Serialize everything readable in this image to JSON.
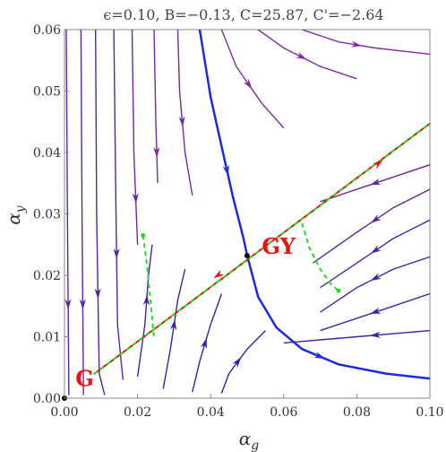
{
  "chart_data": {
    "type": "stream",
    "title": "ϵ=0.10, B=−0.13, C=25.87, C'=−2.64",
    "xlabel": "αg",
    "xlabel_base": "α",
    "xlabel_sub": "g",
    "ylabel_base": "α",
    "ylabel_sub": "y",
    "xlim": [
      0.0,
      0.1
    ],
    "ylim": [
      0.0,
      0.06
    ],
    "x_ticks": [
      0.0,
      0.02,
      0.04,
      0.06,
      0.08,
      0.1
    ],
    "x_tick_labels": [
      "0.00",
      "0.02",
      "0.04",
      "0.06",
      "0.08",
      "0.10"
    ],
    "y_ticks": [
      0.0,
      0.01,
      0.02,
      0.03,
      0.04,
      0.05,
      0.06
    ],
    "y_tick_labels": [
      "0.00",
      "0.01",
      "0.02",
      "0.03",
      "0.04",
      "0.05",
      "0.06"
    ],
    "fixed_points": [
      {
        "label": "G",
        "x": 0.0,
        "y": 0.0,
        "label_x": 0.003,
        "label_y": 0.002
      },
      {
        "label": "GY",
        "x": 0.05,
        "y": 0.0232,
        "label_x": 0.054,
        "label_y": 0.0235
      }
    ],
    "separatrix": {
      "x": [
        0.05,
        0.1
      ],
      "y": [
        0.0232,
        0.0447
      ]
    },
    "red_line": {
      "x": [
        0.008,
        0.1
      ],
      "y": [
        0.0039,
        0.0447
      ]
    },
    "green_dashed": [
      {
        "x": [
          0.008,
          0.1
        ],
        "y": [
          0.0039,
          0.0447
        ]
      },
      {
        "x": [
          0.0215,
          0.0225,
          0.0235,
          0.0245
        ],
        "y": [
          0.0265,
          0.022,
          0.016,
          0.0098
        ]
      },
      {
        "x": [
          0.065,
          0.067,
          0.07,
          0.073,
          0.075
        ],
        "y": [
          0.0285,
          0.0245,
          0.021,
          0.0185,
          0.0175
        ]
      }
    ],
    "blue_critical": [
      {
        "x": [
          0.037,
          0.04,
          0.043,
          0.046,
          0.049,
          0.05
        ],
        "y": [
          0.06,
          0.049,
          0.041,
          0.033,
          0.026,
          0.0232
        ]
      },
      {
        "x": [
          0.05,
          0.053,
          0.058,
          0.065,
          0.075,
          0.088,
          0.1
        ],
        "y": [
          0.0232,
          0.0165,
          0.0115,
          0.008,
          0.0055,
          0.004,
          0.0032
        ]
      }
    ],
    "streamlines": [
      {
        "x": [
          0.0005,
          0.0008,
          0.0012
        ],
        "y": [
          0.06,
          0.03,
          0.0005
        ]
      },
      {
        "x": [
          0.0045,
          0.0048,
          0.0052
        ],
        "y": [
          0.06,
          0.03,
          0.0005
        ]
      },
      {
        "x": [
          0.0085,
          0.0088,
          0.0095,
          0.011
        ],
        "y": [
          0.06,
          0.03,
          0.004,
          0.0005
        ]
      },
      {
        "x": [
          0.0135,
          0.014,
          0.0145,
          0.016
        ],
        "y": [
          0.06,
          0.035,
          0.012,
          0.003
        ]
      },
      {
        "x": [
          0.0185,
          0.019,
          0.02
        ],
        "y": [
          0.06,
          0.04,
          0.025
        ]
      },
      {
        "x": [
          0.0245,
          0.025,
          0.0255
        ],
        "y": [
          0.06,
          0.045,
          0.035
        ]
      },
      {
        "x": [
          0.031,
          0.0315,
          0.033,
          0.035
        ],
        "y": [
          0.06,
          0.05,
          0.04,
          0.033
        ]
      },
      {
        "x": [
          0.043,
          0.047,
          0.054,
          0.06
        ],
        "y": [
          0.06,
          0.054,
          0.048,
          0.044
        ]
      },
      {
        "x": [
          0.053,
          0.06,
          0.07,
          0.08
        ],
        "y": [
          0.06,
          0.057,
          0.054,
          0.052
        ]
      },
      {
        "x": [
          0.065,
          0.075,
          0.085,
          0.1
        ],
        "y": [
          0.06,
          0.058,
          0.057,
          0.056
        ]
      },
      {
        "x": [
          0.02,
          0.022,
          0.023,
          0.024
        ],
        "y": [
          0.0035,
          0.012,
          0.02,
          0.025
        ]
      },
      {
        "x": [
          0.027,
          0.029,
          0.031,
          0.033
        ],
        "y": [
          0.0015,
          0.008,
          0.016,
          0.021
        ]
      },
      {
        "x": [
          0.035,
          0.037,
          0.04,
          0.043
        ],
        "y": [
          0.001,
          0.006,
          0.012,
          0.017
        ]
      },
      {
        "x": [
          0.043,
          0.045,
          0.05,
          0.055
        ],
        "y": [
          0.0008,
          0.004,
          0.008,
          0.011
        ]
      },
      {
        "x": [
          0.1,
          0.09,
          0.08,
          0.07
        ],
        "y": [
          0.038,
          0.036,
          0.034,
          0.032
        ]
      },
      {
        "x": [
          0.1,
          0.09,
          0.08,
          0.068
        ],
        "y": [
          0.034,
          0.031,
          0.027,
          0.022
        ]
      },
      {
        "x": [
          0.1,
          0.09,
          0.08,
          0.07
        ],
        "y": [
          0.029,
          0.026,
          0.022,
          0.018
        ]
      },
      {
        "x": [
          0.1,
          0.09,
          0.08,
          0.07
        ],
        "y": [
          0.023,
          0.021,
          0.018,
          0.014
        ]
      },
      {
        "x": [
          0.1,
          0.09,
          0.08,
          0.07
        ],
        "y": [
          0.017,
          0.015,
          0.013,
          0.011
        ]
      },
      {
        "x": [
          0.1,
          0.09,
          0.08,
          0.06
        ],
        "y": [
          0.011,
          0.0105,
          0.01,
          0.009
        ]
      }
    ]
  },
  "colors": {
    "stream_top": "#8a2ea0",
    "stream_bottom": "#2a1fa8",
    "critical": "#1a2be0",
    "red": "#ee1111",
    "green": "#22dd22",
    "frame": "#888888"
  }
}
